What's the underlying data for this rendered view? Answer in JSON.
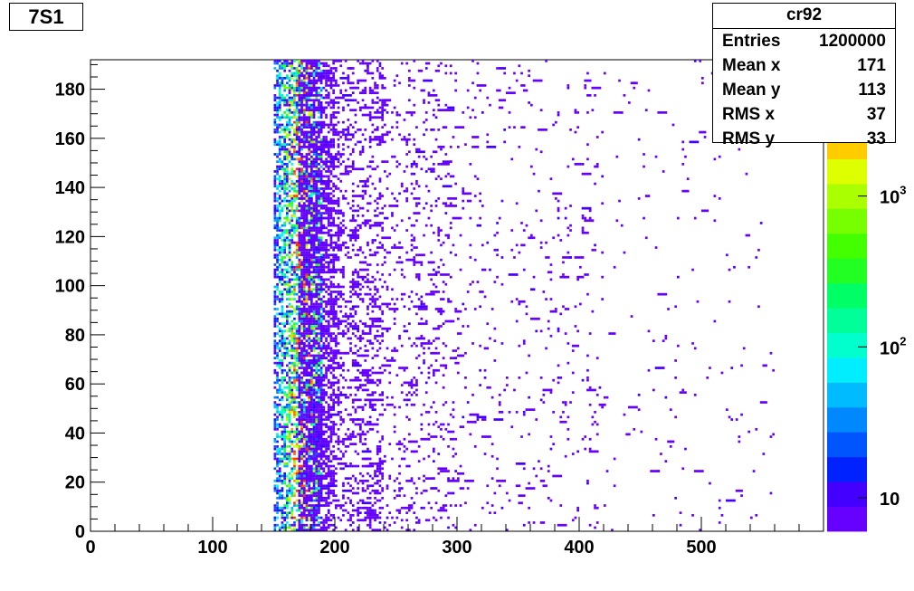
{
  "title": "7S1",
  "stats": {
    "name": "cr92",
    "rows": [
      {
        "label": "Entries",
        "value": "1200000"
      },
      {
        "label": "Mean x",
        "value": "171"
      },
      {
        "label": "Mean y",
        "value": "113"
      },
      {
        "label": "RMS x",
        "value": "37"
      },
      {
        "label": "RMS y",
        "value": "33"
      }
    ]
  },
  "chart_data": {
    "type": "heatmap",
    "title": "7S1",
    "xlim": [
      0,
      600
    ],
    "ylim": [
      0,
      192
    ],
    "x_ticks": [
      0,
      100,
      200,
      300,
      400,
      500
    ],
    "y_ticks": [
      0,
      20,
      40,
      60,
      80,
      100,
      120,
      140,
      160,
      180
    ],
    "z_scale": "log",
    "z_range": [
      6,
      8000
    ],
    "z_ticks": [
      {
        "value": 10,
        "label": "10"
      },
      {
        "value": 100,
        "label": "10",
        "exp": "2"
      },
      {
        "value": 1000,
        "label": "10",
        "exp": "3"
      }
    ],
    "palette": [
      "#6600ff",
      "#4400ff",
      "#0022ff",
      "#0055ff",
      "#0088ff",
      "#00bbff",
      "#00eeff",
      "#00ffcc",
      "#00ff99",
      "#00ff66",
      "#22ff22",
      "#44ff00",
      "#77ff00",
      "#aaff00",
      "#ddff00",
      "#ffcc00",
      "#ff9900",
      "#ff6600",
      "#ff3300"
    ],
    "regions": [
      {
        "x": [
          170,
          200
        ],
        "y": [
          0,
          192
        ],
        "density": 0.55
      },
      {
        "x": [
          200,
          240
        ],
        "y": [
          0,
          192
        ],
        "density": 0.22
      },
      {
        "x": [
          240,
          300
        ],
        "y": [
          0,
          192
        ],
        "density": 0.1
      },
      {
        "x": [
          300,
          420
        ],
        "y": [
          0,
          192
        ],
        "density": 0.035
      },
      {
        "x": [
          420,
          560
        ],
        "y": [
          0,
          192
        ],
        "density": 0.012
      }
    ],
    "hot_band": {
      "x": [
        150,
        190
      ],
      "y": [
        0,
        192
      ],
      "density": 0.6
    },
    "seed": 92
  }
}
